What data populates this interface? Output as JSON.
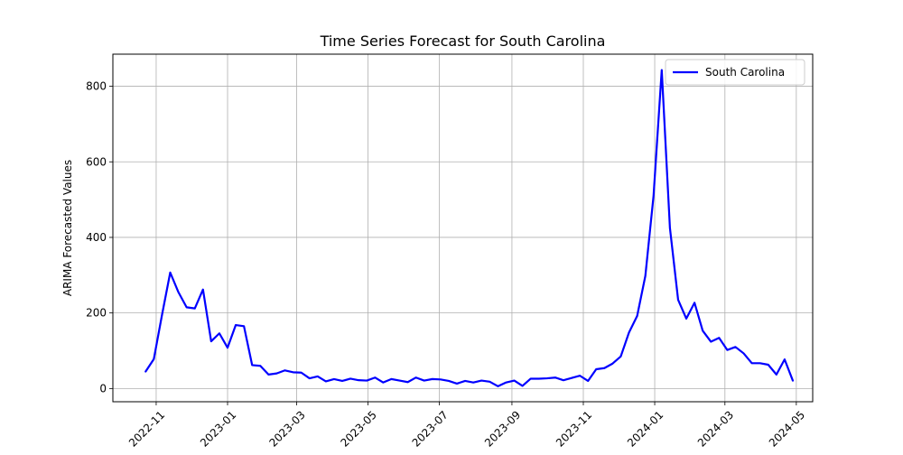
{
  "chart_data": {
    "type": "line",
    "title": "Time Series Forecast for South Carolina",
    "xlabel": "",
    "ylabel": "ARIMA Forecasted Values",
    "xlim": [
      "2022-09-25",
      "2024-05-15"
    ],
    "ylim": [
      -35,
      885
    ],
    "x_ticks": [
      "2022-11",
      "2023-01",
      "2023-03",
      "2023-05",
      "2023-07",
      "2023-09",
      "2023-11",
      "2024-01",
      "2024-03",
      "2024-05"
    ],
    "y_ticks": [
      0,
      200,
      400,
      600,
      800
    ],
    "grid": true,
    "legend_position": "top-right",
    "series": [
      {
        "name": "South Carolina",
        "color": "#0000ff",
        "x": [
          "2022-10-23",
          "2022-10-30",
          "2022-11-06",
          "2022-11-13",
          "2022-11-20",
          "2022-11-27",
          "2022-12-04",
          "2022-12-11",
          "2022-12-18",
          "2022-12-25",
          "2023-01-01",
          "2023-01-08",
          "2023-01-15",
          "2023-01-22",
          "2023-01-29",
          "2023-02-05",
          "2023-02-12",
          "2023-02-19",
          "2023-02-26",
          "2023-03-05",
          "2023-03-12",
          "2023-03-19",
          "2023-03-26",
          "2023-04-02",
          "2023-04-09",
          "2023-04-16",
          "2023-04-23",
          "2023-04-30",
          "2023-05-07",
          "2023-05-14",
          "2023-05-21",
          "2023-05-28",
          "2023-06-04",
          "2023-06-11",
          "2023-06-18",
          "2023-06-25",
          "2023-07-02",
          "2023-07-09",
          "2023-07-16",
          "2023-07-23",
          "2023-07-30",
          "2023-08-06",
          "2023-08-13",
          "2023-08-20",
          "2023-08-27",
          "2023-09-03",
          "2023-09-10",
          "2023-09-17",
          "2023-09-24",
          "2023-10-01",
          "2023-10-08",
          "2023-10-15",
          "2023-10-22",
          "2023-10-29",
          "2023-11-05",
          "2023-11-12",
          "2023-11-19",
          "2023-11-26",
          "2023-12-03",
          "2023-12-10",
          "2023-12-17",
          "2023-12-24",
          "2023-12-31",
          "2024-01-07",
          "2024-01-14",
          "2024-01-21",
          "2024-01-28",
          "2024-02-04",
          "2024-02-11",
          "2024-02-18",
          "2024-02-25",
          "2024-03-03",
          "2024-03-10",
          "2024-03-17",
          "2024-03-24",
          "2024-03-31",
          "2024-04-07",
          "2024-04-14",
          "2024-04-21",
          "2024-04-28"
        ],
        "values": [
          45,
          78,
          195,
          307,
          255,
          215,
          212,
          262,
          125,
          146,
          108,
          168,
          165,
          62,
          60,
          37,
          40,
          48,
          43,
          42,
          27,
          32,
          19,
          25,
          20,
          26,
          22,
          21,
          29,
          16,
          25,
          21,
          17,
          29,
          21,
          25,
          24,
          20,
          13,
          20,
          16,
          21,
          18,
          6,
          16,
          21,
          7,
          26,
          26,
          27,
          29,
          22,
          28,
          34,
          20,
          51,
          54,
          66,
          85,
          148,
          192,
          298,
          510,
          843,
          425,
          235,
          185,
          227,
          153,
          124,
          134,
          102,
          110,
          93,
          67,
          67,
          63,
          37,
          77,
          21
        ]
      }
    ]
  }
}
